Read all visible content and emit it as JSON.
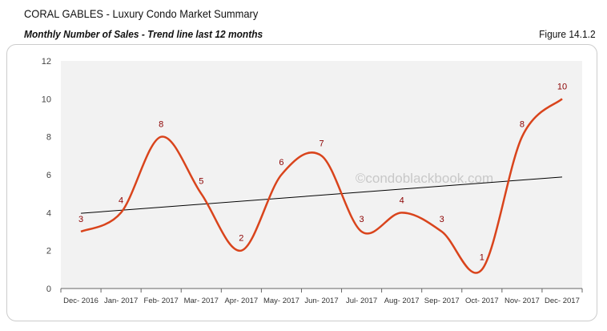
{
  "header": {
    "title": "CORAL GABLES - Luxury Condo Market Summary",
    "subtitle": "Monthly Number of Sales - Trend line last 12 months",
    "figure": "Figure 14.1.2"
  },
  "watermark": "©condoblackbook.com",
  "chart_data": {
    "type": "line",
    "categories": [
      "Dec- 2016",
      "Jan- 2017",
      "Feb- 2017",
      "Mar- 2017",
      "Apr- 2017",
      "May- 2017",
      "Jun- 2017",
      "Jul- 2017",
      "Aug- 2017",
      "Sep- 2017",
      "Oct- 2017",
      "Nov- 2017",
      "Dec- 2017"
    ],
    "values": [
      3,
      4,
      8,
      5,
      2,
      6,
      7,
      3,
      4,
      3,
      1,
      8,
      10
    ],
    "ylim": [
      0,
      12
    ],
    "yticks": [
      0,
      2,
      4,
      6,
      8,
      10,
      12
    ],
    "trendline": "linear",
    "grid": false,
    "colors": {
      "series": "#d9441c",
      "labels": "#8b0000",
      "trend": "#000000",
      "plot_bg": "#f2f2f2"
    }
  }
}
